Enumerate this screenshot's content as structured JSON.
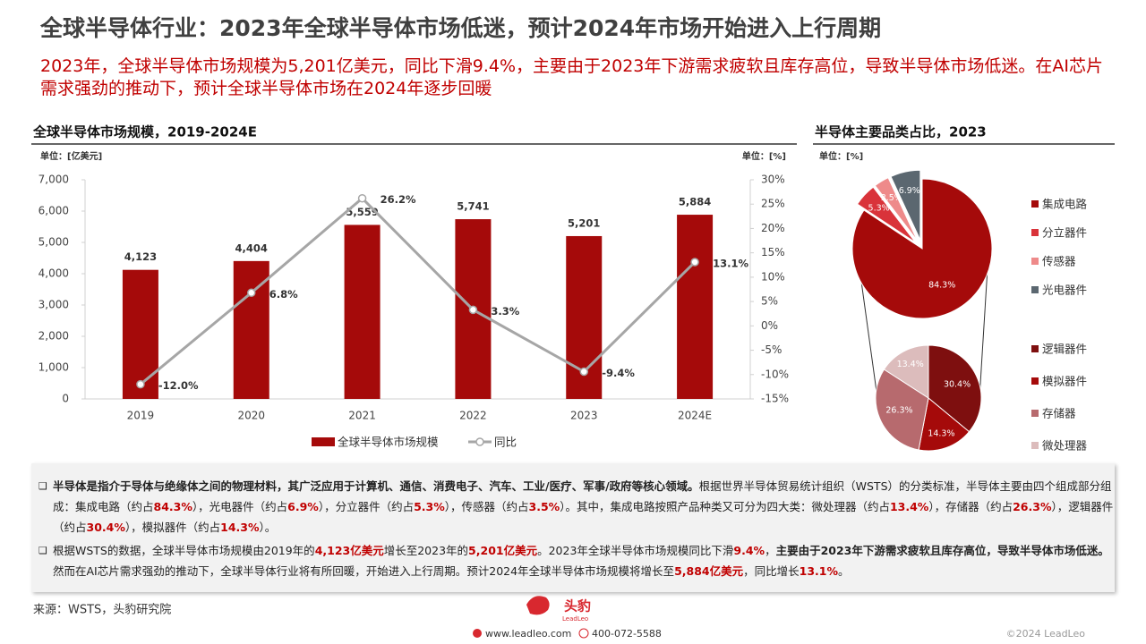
{
  "header": {
    "title": "全球半导体行业：2023年全球半导体市场低迷，预计2024年市场开始进入上行周期",
    "subtitle": "2023年，全球半导体市场规模为5,201亿美元，同比下滑9.4%，主要由于2023年下游需求疲软且库存高位，导致半导体市场低迷。在AI芯片需求强劲的推动下，预计全球半导体市场在2024年逐步回暖"
  },
  "chart_data": [
    {
      "type": "bar",
      "title": "全球半导体市场规模，2019-2024E",
      "y_unit": "单位：[亿美元]",
      "y2_unit": "单位：[%]",
      "categories": [
        "2019",
        "2020",
        "2021",
        "2022",
        "2023",
        "2024E"
      ],
      "series": [
        {
          "name": "全球半导体市场规模",
          "type": "bar",
          "color": "#a50a0a",
          "values": [
            4123,
            4404,
            5559,
            5741,
            5201,
            5884
          ],
          "value_labels": [
            "4,123",
            "4,404",
            "5,559",
            "5,741",
            "5,201",
            "5,884"
          ]
        },
        {
          "name": "同比",
          "type": "line",
          "axis": "y2",
          "color": "#a6a6a6",
          "values": [
            -12.0,
            6.8,
            26.2,
            3.3,
            -9.4,
            13.1
          ],
          "value_labels": [
            "-12.0%",
            "6.8%",
            "26.2%",
            "3.3%",
            "-9.4%",
            "13.1%"
          ]
        }
      ],
      "ylim": [
        0,
        7000
      ],
      "yticks": [
        0,
        {
          "value": 1000,
          "label": "1,000"
        },
        {
          "value": 2000,
          "label": "2,000"
        },
        {
          "value": 3000,
          "label": "3,000"
        },
        {
          "value": 4000,
          "label": "4,000"
        },
        {
          "value": 5000,
          "label": "5,000"
        },
        {
          "value": 6000,
          "label": "6,000"
        },
        {
          "value": 7000,
          "label": "7,000"
        }
      ],
      "y2lim": [
        -15,
        30
      ],
      "y2ticks": [
        {
          "value": -15,
          "label": "-15%"
        },
        {
          "value": -10,
          "label": "-10%"
        },
        {
          "value": -5,
          "label": "-5%"
        },
        {
          "value": 0,
          "label": "0%"
        },
        {
          "value": 5,
          "label": "5%"
        },
        {
          "value": 10,
          "label": "10%"
        },
        {
          "value": 15,
          "label": "15%"
        },
        {
          "value": 20,
          "label": "20%"
        },
        {
          "value": 25,
          "label": "25%"
        },
        {
          "value": 30,
          "label": "30%"
        }
      ],
      "grid": false
    },
    {
      "type": "pie",
      "title": "半导体主要品类占比，2023",
      "unit": "单位：[%]",
      "categories": [
        "集成电路",
        "分立器件",
        "传感器",
        "光电器件"
      ],
      "values": [
        84.3,
        5.3,
        3.5,
        6.9
      ],
      "value_labels": [
        "84.3%",
        "5.3%",
        "3.5%",
        "6.9%"
      ],
      "colors": [
        "#a50a0a",
        "#d9333a",
        "#ee8a8a",
        "#5b6770"
      ]
    },
    {
      "type": "pie",
      "categories": [
        "逻辑器件",
        "模拟器件",
        "存储器",
        "微处理器"
      ],
      "values": [
        30.4,
        14.3,
        26.3,
        13.4
      ],
      "value_labels": [
        "30.4%",
        "14.3%",
        "26.3%",
        "13.4%"
      ],
      "colors": [
        "#7e0f0f",
        "#a50a0a",
        "#b76a6e",
        "#dcbcbc"
      ]
    }
  ],
  "bullets": [
    {
      "runs": [
        {
          "text": "半导体是指介于导体与绝缘体之间的物理材料，其广泛应用于计算机、通信、消费电子、汽车、工业/医疗、军事/政府等核心领域。",
          "bold": true,
          "red": false
        },
        {
          "text": "根据世界半导体贸易统计组织（WSTS）的分类标准，半导体主要由四个组成部分组成：集成电路（约占",
          "bold": false,
          "red": false
        },
        {
          "text": "84.3%",
          "bold": true,
          "red": true
        },
        {
          "text": "），光电器件（约占",
          "bold": false,
          "red": false
        },
        {
          "text": "6.9%",
          "bold": true,
          "red": true
        },
        {
          "text": "），分立器件（约占",
          "bold": false,
          "red": false
        },
        {
          "text": "5.3%",
          "bold": true,
          "red": true
        },
        {
          "text": "），传感器（约占",
          "bold": false,
          "red": false
        },
        {
          "text": "3.5%",
          "bold": true,
          "red": true
        },
        {
          "text": "）。其中，集成电路按照产品种类又可分为四大类：微处理器（约占",
          "bold": false,
          "red": false
        },
        {
          "text": "13.4%",
          "bold": true,
          "red": true
        },
        {
          "text": "），存储器（约占",
          "bold": false,
          "red": false
        },
        {
          "text": "26.3%",
          "bold": true,
          "red": true
        },
        {
          "text": "），逻辑器件（约占",
          "bold": false,
          "red": false
        },
        {
          "text": "30.4%",
          "bold": true,
          "red": true
        },
        {
          "text": "），模拟器件（约占",
          "bold": false,
          "red": false
        },
        {
          "text": "14.3%",
          "bold": true,
          "red": true
        },
        {
          "text": "）。",
          "bold": false,
          "red": false
        }
      ]
    },
    {
      "runs": [
        {
          "text": "根据WSTS的数据，全球半导体市场规模由2019年的",
          "bold": false,
          "red": false
        },
        {
          "text": "4,123亿美元",
          "bold": true,
          "red": true
        },
        {
          "text": "增长至2023年的",
          "bold": false,
          "red": false
        },
        {
          "text": "5,201亿美元",
          "bold": true,
          "red": true
        },
        {
          "text": "。2023年全球半导体市场规模同比下滑",
          "bold": false,
          "red": false
        },
        {
          "text": "9.4%",
          "bold": true,
          "red": true
        },
        {
          "text": "，",
          "bold": false,
          "red": false
        },
        {
          "text": "主要由于2023年下游需求疲软且库存高位，导致半导体市场低迷。",
          "bold": true,
          "red": false
        },
        {
          "text": "然而在AI芯片需求强劲的推动下，全球半导体行业将有所回暖，开始进入上行周期。预计2024年全球半导体市场规模将增长至",
          "bold": false,
          "red": false
        },
        {
          "text": "5,884亿美元",
          "bold": true,
          "red": true
        },
        {
          "text": "，同比增长",
          "bold": false,
          "red": false
        },
        {
          "text": "13.1%",
          "bold": true,
          "red": true
        },
        {
          "text": "。",
          "bold": false,
          "red": false
        }
      ]
    }
  ],
  "footer": {
    "source": "来源：WSTS，头豹研究院",
    "logo": "头豹",
    "logo_en": "LeadLeo",
    "website": "www.leadleo.com",
    "phone": "400-072-5588",
    "copyright": "©2024 LeadLeo"
  }
}
